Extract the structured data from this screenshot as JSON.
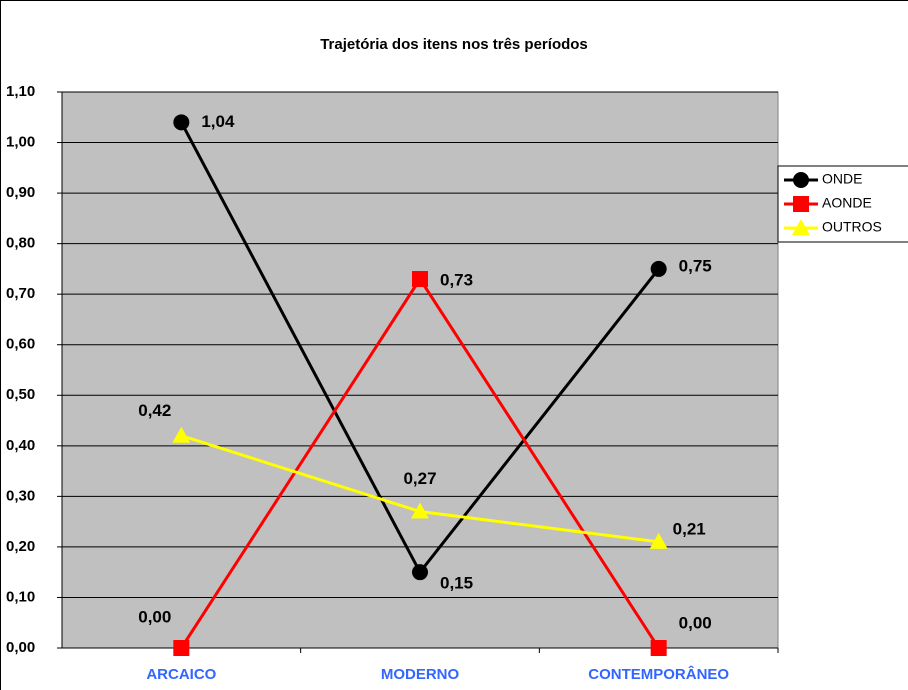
{
  "chart_data": {
    "type": "line",
    "title": "Trajetória dos itens nos três períodos",
    "categories": [
      "ARCAICO",
      "MODERNO",
      "CONTEMPORÂNEO"
    ],
    "series": [
      {
        "name": "ONDE",
        "color": "#000000",
        "marker": "circle",
        "values": [
          1.04,
          0.15,
          0.75
        ],
        "value_labels": [
          "1,04",
          "0,15",
          "0,75"
        ]
      },
      {
        "name": "AONDE",
        "color": "#ff0000",
        "marker": "square",
        "values": [
          0.0,
          0.73,
          0.0
        ],
        "value_labels": [
          "0,00",
          "0,73",
          "0,00"
        ]
      },
      {
        "name": "OUTROS",
        "color": "#ffff00",
        "marker": "triangle",
        "values": [
          0.42,
          0.27,
          0.21
        ],
        "value_labels": [
          "0,42",
          "0,27",
          "0,21"
        ]
      }
    ],
    "ylim": [
      0,
      1.1
    ],
    "yticks": [
      {
        "value": 0,
        "label": "0,00"
      },
      {
        "value": 0.1,
        "label": "0,10"
      },
      {
        "value": 0.2,
        "label": "0,20"
      },
      {
        "value": 0.3,
        "label": "0,30"
      },
      {
        "value": 0.4,
        "label": "0,40"
      },
      {
        "value": 0.5,
        "label": "0,50"
      },
      {
        "value": 0.6,
        "label": "0,60"
      },
      {
        "value": 0.7,
        "label": "0,70"
      },
      {
        "value": 0.8,
        "label": "0,80"
      },
      {
        "value": 0.9,
        "label": "0,90"
      },
      {
        "value": 1.0,
        "label": "1,00"
      },
      {
        "value": 1.1,
        "label": "1,10"
      }
    ],
    "grid": true,
    "legend": "right"
  }
}
